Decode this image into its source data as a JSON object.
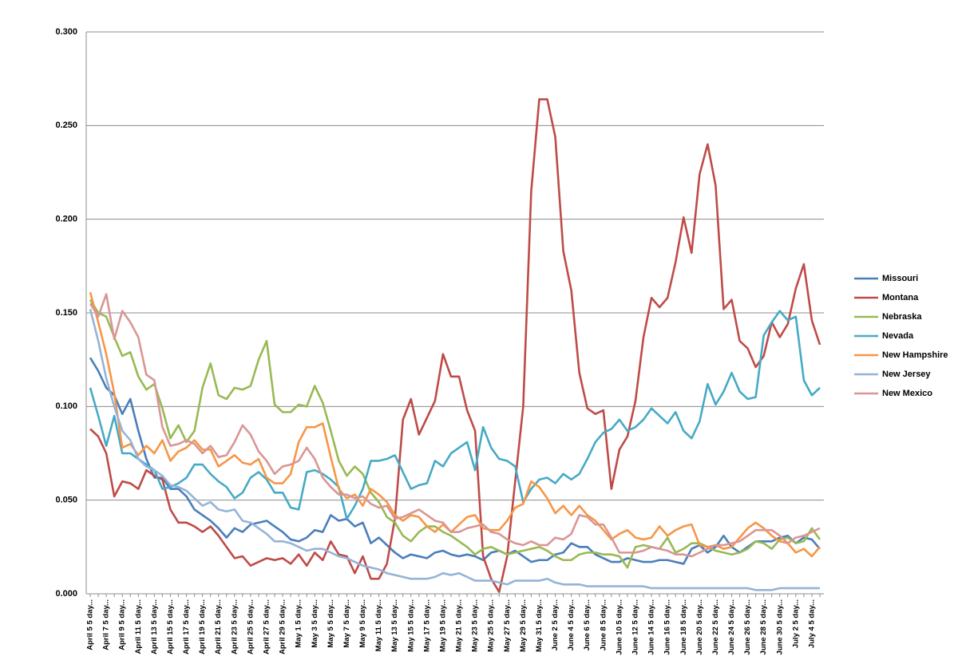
{
  "chart_data": {
    "type": "line",
    "categories": [
      "April 5 5 day...",
      null,
      "April 7 5 day...",
      null,
      "April 9 5 day...",
      null,
      "April 11 5 day...",
      null,
      "April 13 5 day...",
      null,
      "April 15 5 day...",
      null,
      "April 17 5 day...",
      null,
      "April 19 5 day...",
      null,
      "April 21 5 day...",
      null,
      "April 23 5 day...",
      null,
      "April 25 5 day...",
      null,
      "April 27 5 day...",
      null,
      "April 29 5 day...",
      null,
      "May 1 5 day...",
      null,
      "May 3 5 day...",
      null,
      "May 5 5 day...",
      null,
      "May 7 5 day...",
      null,
      "May 9 5 day...",
      null,
      "May 11 5 day...",
      null,
      "May 13 5 day...",
      null,
      "May 15 5 day...",
      null,
      "May 17 5 day...",
      null,
      "May 19 5 day...",
      null,
      "May 21 5 day...",
      null,
      "May 23 5 day...",
      null,
      "May 25 5 day...",
      null,
      "May 27 5 day...",
      null,
      "May 29 5 day...",
      null,
      "May 31 5 day...",
      null,
      "June 2 5 day...",
      null,
      "June 4 5 day...",
      null,
      "June 6 5 day...",
      null,
      "June 8 5 day...",
      null,
      "June 10 5 day...",
      null,
      "June 12 5 day...",
      null,
      "June 14 5 day...",
      null,
      "June 16 5 day...",
      null,
      "June 18 5 day...",
      null,
      "June 20 5 day...",
      null,
      "June 22 5 day...",
      null,
      "June 24 5 day...",
      null,
      "June 26 5 day...",
      null,
      "June 28 5 day...",
      null,
      "June 30 5 day...",
      null,
      "July 2 5 day...",
      null,
      "July 4 5 day...",
      null
    ],
    "series": [
      {
        "name": "Missouri",
        "color": "#4a7ebb",
        "values": [
          0.126,
          0.119,
          0.11,
          0.106,
          0.096,
          0.104,
          0.087,
          0.072,
          0.062,
          0.062,
          0.056,
          0.056,
          0.052,
          0.045,
          0.042,
          0.039,
          0.035,
          0.03,
          0.035,
          0.033,
          0.037,
          0.038,
          0.039,
          0.036,
          0.033,
          0.029,
          0.028,
          0.03,
          0.034,
          0.033,
          0.042,
          0.039,
          0.04,
          0.036,
          0.038,
          0.027,
          0.03,
          0.026,
          0.022,
          0.019,
          0.021,
          0.02,
          0.019,
          0.022,
          0.023,
          0.021,
          0.02,
          0.021,
          0.02,
          0.018,
          0.022,
          0.023,
          0.021,
          0.023,
          0.02,
          0.017,
          0.018,
          0.018,
          0.021,
          0.022,
          0.027,
          0.025,
          0.025,
          0.021,
          0.019,
          0.017,
          0.017,
          0.019,
          0.018,
          0.017,
          0.017,
          0.018,
          0.018,
          0.017,
          0.016,
          0.024,
          0.026,
          0.022,
          0.025,
          0.031,
          0.025,
          0.022,
          0.025,
          0.028,
          0.028,
          0.028,
          0.03,
          0.031,
          0.027,
          0.03,
          0.029,
          0.024
        ]
      },
      {
        "name": "Montana",
        "color": "#be4b48",
        "values": [
          0.088,
          0.084,
          0.075,
          0.052,
          0.06,
          0.059,
          0.056,
          0.066,
          0.063,
          0.061,
          0.045,
          0.038,
          0.038,
          0.036,
          0.033,
          0.036,
          0.031,
          0.025,
          0.019,
          0.02,
          0.015,
          0.017,
          0.019,
          0.018,
          0.019,
          0.016,
          0.021,
          0.015,
          0.022,
          0.018,
          0.028,
          0.021,
          0.02,
          0.011,
          0.02,
          0.008,
          0.008,
          0.016,
          0.04,
          0.093,
          0.104,
          0.085,
          0.094,
          0.103,
          0.128,
          0.116,
          0.116,
          0.098,
          0.087,
          0.02,
          0.008,
          0.001,
          0.02,
          0.06,
          0.1,
          0.215,
          0.264,
          0.264,
          0.244,
          0.183,
          0.162,
          0.118,
          0.099,
          0.096,
          0.098,
          0.056,
          0.077,
          0.084,
          0.103,
          0.137,
          0.158,
          0.153,
          0.158,
          0.177,
          0.201,
          0.182,
          0.224,
          0.24,
          0.218,
          0.152,
          0.157,
          0.135,
          0.131,
          0.121,
          0.127,
          0.145,
          0.137,
          0.144,
          0.163,
          0.176,
          0.146,
          0.133
        ]
      },
      {
        "name": "Nebraska",
        "color": "#98b954",
        "values": [
          0.157,
          0.15,
          0.148,
          0.137,
          0.127,
          0.129,
          0.116,
          0.109,
          0.112,
          0.099,
          0.083,
          0.09,
          0.081,
          0.087,
          0.11,
          0.123,
          0.106,
          0.104,
          0.11,
          0.109,
          0.111,
          0.125,
          0.135,
          0.101,
          0.097,
          0.097,
          0.101,
          0.1,
          0.111,
          0.102,
          0.087,
          0.071,
          0.063,
          0.068,
          0.064,
          0.054,
          0.049,
          0.041,
          0.038,
          0.031,
          0.028,
          0.033,
          0.036,
          0.036,
          0.033,
          0.031,
          0.028,
          0.025,
          0.021,
          0.024,
          0.025,
          0.023,
          0.021,
          0.022,
          0.023,
          0.024,
          0.025,
          0.023,
          0.02,
          0.018,
          0.018,
          0.021,
          0.022,
          0.022,
          0.021,
          0.021,
          0.02,
          0.014,
          0.025,
          0.026,
          0.025,
          0.024,
          0.03,
          0.022,
          0.024,
          0.027,
          0.027,
          0.025,
          0.023,
          0.022,
          0.021,
          0.022,
          0.024,
          0.028,
          0.027,
          0.024,
          0.029,
          0.03,
          0.027,
          0.028,
          0.035,
          0.029
        ]
      },
      {
        "name": "Nevada",
        "color": "#46aac5",
        "values": [
          0.11,
          0.095,
          0.079,
          0.095,
          0.075,
          0.075,
          0.072,
          0.069,
          0.066,
          0.056,
          0.057,
          0.059,
          0.062,
          0.069,
          0.069,
          0.064,
          0.06,
          0.057,
          0.051,
          0.054,
          0.062,
          0.065,
          0.061,
          0.054,
          0.054,
          0.046,
          0.045,
          0.065,
          0.066,
          0.064,
          0.061,
          0.057,
          0.04,
          0.047,
          0.056,
          0.071,
          0.071,
          0.072,
          0.074,
          0.065,
          0.056,
          0.058,
          0.059,
          0.071,
          0.068,
          0.075,
          0.078,
          0.081,
          0.066,
          0.089,
          0.078,
          0.072,
          0.071,
          0.068,
          0.049,
          0.056,
          0.061,
          0.062,
          0.059,
          0.064,
          0.061,
          0.064,
          0.072,
          0.081,
          0.086,
          0.088,
          0.093,
          0.087,
          0.089,
          0.093,
          0.099,
          0.095,
          0.091,
          0.097,
          0.087,
          0.083,
          0.092,
          0.112,
          0.101,
          0.108,
          0.118,
          0.108,
          0.104,
          0.105,
          0.138,
          0.145,
          0.151,
          0.146,
          0.148,
          0.114,
          0.106,
          0.11
        ]
      },
      {
        "name": "New Hampshire",
        "color": "#f79646",
        "values": [
          0.161,
          0.145,
          0.128,
          0.107,
          0.078,
          0.08,
          0.074,
          0.079,
          0.075,
          0.082,
          0.071,
          0.076,
          0.078,
          0.082,
          0.077,
          0.077,
          0.068,
          0.071,
          0.074,
          0.07,
          0.069,
          0.072,
          0.062,
          0.059,
          0.059,
          0.064,
          0.081,
          0.089,
          0.089,
          0.091,
          0.073,
          0.056,
          0.051,
          0.053,
          0.047,
          0.056,
          0.053,
          0.049,
          0.042,
          0.039,
          0.042,
          0.041,
          0.036,
          0.033,
          0.037,
          0.033,
          0.037,
          0.041,
          0.042,
          0.035,
          0.034,
          0.034,
          0.039,
          0.046,
          0.048,
          0.06,
          0.057,
          0.051,
          0.043,
          0.047,
          0.042,
          0.047,
          0.042,
          0.039,
          0.034,
          0.029,
          0.032,
          0.034,
          0.03,
          0.029,
          0.03,
          0.036,
          0.031,
          0.034,
          0.036,
          0.037,
          0.026,
          0.025,
          0.026,
          0.024,
          0.025,
          0.03,
          0.035,
          0.038,
          0.035,
          0.031,
          0.028,
          0.027,
          0.022,
          0.024,
          0.02,
          0.025
        ]
      },
      {
        "name": "New Jersey",
        "color": "#95b3d7",
        "values": [
          0.152,
          0.135,
          0.115,
          0.1,
          0.087,
          0.082,
          0.072,
          0.068,
          0.066,
          0.063,
          0.058,
          0.057,
          0.055,
          0.051,
          0.047,
          0.049,
          0.045,
          0.044,
          0.045,
          0.039,
          0.038,
          0.035,
          0.032,
          0.028,
          0.028,
          0.027,
          0.025,
          0.023,
          0.024,
          0.024,
          0.022,
          0.02,
          0.019,
          0.017,
          0.015,
          0.014,
          0.013,
          0.011,
          0.01,
          0.009,
          0.008,
          0.008,
          0.008,
          0.009,
          0.011,
          0.01,
          0.011,
          0.009,
          0.007,
          0.007,
          0.007,
          0.006,
          0.005,
          0.007,
          0.007,
          0.007,
          0.007,
          0.008,
          0.006,
          0.005,
          0.005,
          0.005,
          0.004,
          0.004,
          0.004,
          0.004,
          0.004,
          0.004,
          0.004,
          0.004,
          0.003,
          0.003,
          0.003,
          0.003,
          0.003,
          0.003,
          0.003,
          0.003,
          0.003,
          0.003,
          0.003,
          0.003,
          0.003,
          0.002,
          0.002,
          0.002,
          0.003,
          0.003,
          0.003,
          0.003,
          0.003,
          0.003
        ]
      },
      {
        "name": "New Mexico",
        "color": "#d99694",
        "values": [
          0.155,
          0.148,
          0.16,
          0.136,
          0.151,
          0.145,
          0.137,
          0.117,
          0.114,
          0.089,
          0.079,
          0.08,
          0.082,
          0.08,
          0.075,
          0.079,
          0.073,
          0.074,
          0.081,
          0.09,
          0.085,
          0.076,
          0.071,
          0.064,
          0.068,
          0.069,
          0.071,
          0.078,
          0.072,
          0.062,
          0.057,
          0.053,
          0.053,
          0.051,
          0.052,
          0.048,
          0.046,
          0.047,
          0.04,
          0.041,
          0.043,
          0.045,
          0.042,
          0.039,
          0.038,
          0.033,
          0.033,
          0.035,
          0.036,
          0.037,
          0.033,
          0.032,
          0.029,
          0.027,
          0.026,
          0.028,
          0.026,
          0.026,
          0.03,
          0.029,
          0.032,
          0.042,
          0.041,
          0.037,
          0.037,
          0.03,
          0.022,
          0.022,
          0.022,
          0.023,
          0.025,
          0.024,
          0.023,
          0.021,
          0.021,
          0.02,
          0.022,
          0.024,
          0.026,
          0.026,
          0.027,
          0.028,
          0.031,
          0.034,
          0.034,
          0.034,
          0.031,
          0.027,
          0.03,
          0.031,
          0.033,
          0.035
        ]
      }
    ],
    "ylim": [
      0,
      0.3
    ],
    "yticks": [
      {
        "value": 0,
        "label": "0.000"
      },
      {
        "value": 0.05,
        "label": "0.050"
      },
      {
        "value": 0.1,
        "label": "0.100"
      },
      {
        "value": 0.15,
        "label": "0.150"
      },
      {
        "value": 0.2,
        "label": "0.200"
      },
      {
        "value": 0.25,
        "label": "0.250"
      },
      {
        "value": 0.3,
        "label": "0.300"
      }
    ],
    "grid": true,
    "legend": "right"
  }
}
